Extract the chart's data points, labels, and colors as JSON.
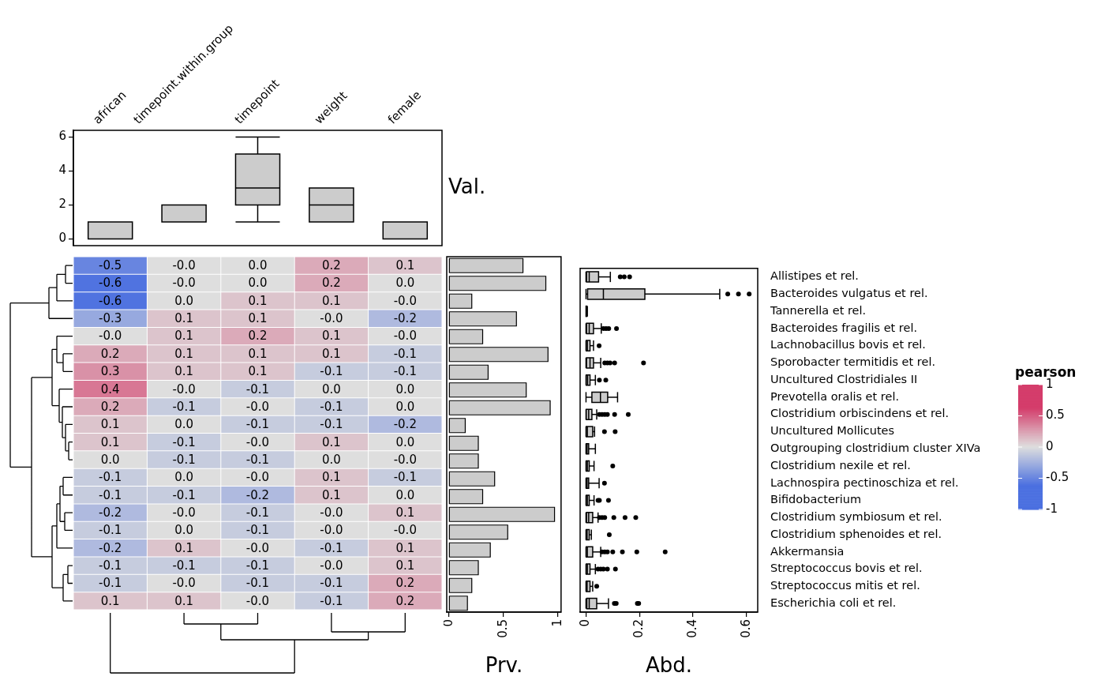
{
  "chart_data": [
    {
      "type": "box",
      "categories": [
        "african",
        "timepoint.within.group",
        "timepoint",
        "weight",
        "female"
      ],
      "color": "#cccccc",
      "ylabel": "Val.",
      "ylim": [
        -0.4,
        6.4
      ],
      "yticks": [
        0,
        2,
        4,
        6
      ],
      "boxes": [
        {
          "low": 0,
          "q1": 0,
          "median": 0,
          "q3": 1,
          "high": 1
        },
        {
          "low": 1,
          "q1": 1,
          "median": 1,
          "q3": 2,
          "high": 2
        },
        {
          "low": 1,
          "q1": 2,
          "median": 3,
          "q3": 5,
          "high": 6
        },
        {
          "low": 1,
          "q1": 1,
          "median": 2,
          "q3": 3,
          "high": 3
        },
        {
          "low": 0,
          "q1": 0,
          "median": 0,
          "q3": 1,
          "high": 1
        }
      ]
    },
    {
      "type": "heatmap",
      "categories": [
        null,
        null,
        null,
        null,
        null
      ],
      "y_categories": [
        null,
        null,
        null,
        null,
        null,
        null,
        null,
        null,
        null,
        null,
        null,
        null,
        null,
        null,
        null,
        null,
        null,
        null,
        null,
        null
      ],
      "cells": [
        [
          -0.5,
          0,
          0,
          0.2,
          0.1
        ],
        [
          -0.6,
          0,
          0,
          0.2,
          0
        ],
        [
          -0.6,
          0,
          0.1,
          0.1,
          0
        ],
        [
          -0.3,
          0.1,
          0.1,
          0,
          -0.2
        ],
        [
          0,
          0.1,
          0.2,
          0.1,
          0
        ],
        [
          0.2,
          0.1,
          0.1,
          0.1,
          -0.1
        ],
        [
          0.3,
          0.1,
          0.1,
          -0.1,
          -0.1
        ],
        [
          0.4,
          0,
          -0.1,
          0,
          0
        ],
        [
          0.2,
          -0.1,
          0,
          -0.1,
          0
        ],
        [
          0.1,
          0,
          -0.1,
          -0.1,
          -0.2
        ],
        [
          0.1,
          -0.1,
          0,
          0.1,
          0
        ],
        [
          0,
          -0.1,
          -0.1,
          0,
          0
        ],
        [
          -0.1,
          0,
          0,
          0.1,
          -0.1
        ],
        [
          -0.1,
          -0.1,
          -0.2,
          0.1,
          0
        ],
        [
          -0.2,
          0,
          -0.1,
          0,
          0.1
        ],
        [
          -0.1,
          0,
          -0.1,
          0,
          0
        ],
        [
          -0.2,
          0.1,
          0,
          -0.1,
          0.1
        ],
        [
          -0.1,
          -0.1,
          -0.1,
          0,
          0.1
        ],
        [
          -0.1,
          0,
          -0.1,
          -0.1,
          0.2
        ],
        [
          0.1,
          0.1,
          0,
          -0.1,
          0.2
        ]
      ],
      "cell_labels": [
        [
          "-0.5",
          "-0.0",
          "0.0",
          "0.2",
          "0.1"
        ],
        [
          "-0.6",
          "-0.0",
          "0.0",
          "0.2",
          "0.0"
        ],
        [
          "-0.6",
          "0.0",
          "0.1",
          "0.1",
          "-0.0"
        ],
        [
          "-0.3",
          "0.1",
          "0.1",
          "-0.0",
          "-0.2"
        ],
        [
          "-0.0",
          "0.1",
          "0.2",
          "0.1",
          "-0.0"
        ],
        [
          "0.2",
          "0.1",
          "0.1",
          "0.1",
          "-0.1"
        ],
        [
          "0.3",
          "0.1",
          "0.1",
          "-0.1",
          "-0.1"
        ],
        [
          "0.4",
          "-0.0",
          "-0.1",
          "0.0",
          "0.0"
        ],
        [
          "0.2",
          "-0.1",
          "-0.0",
          "-0.1",
          "0.0"
        ],
        [
          "0.1",
          "0.0",
          "-0.1",
          "-0.1",
          "-0.2"
        ],
        [
          "0.1",
          "-0.1",
          "-0.0",
          "0.1",
          "0.0"
        ],
        [
          "0.0",
          "-0.1",
          "-0.1",
          "0.0",
          "-0.0"
        ],
        [
          "-0.1",
          "0.0",
          "-0.0",
          "0.1",
          "-0.1"
        ],
        [
          "-0.1",
          "-0.1",
          "-0.2",
          "0.1",
          "0.0"
        ],
        [
          "-0.2",
          "-0.0",
          "-0.1",
          "-0.0",
          "0.1"
        ],
        [
          "-0.1",
          "0.0",
          "-0.1",
          "-0.0",
          "-0.0"
        ],
        [
          "-0.2",
          "0.1",
          "-0.0",
          "-0.1",
          "0.1"
        ],
        [
          "-0.1",
          "-0.1",
          "-0.1",
          "-0.0",
          "0.1"
        ],
        [
          "-0.1",
          "-0.0",
          "-0.1",
          "-0.1",
          "0.2"
        ],
        [
          "0.1",
          "0.1",
          "-0.0",
          "-0.1",
          "0.2"
        ]
      ],
      "clim": [
        -1,
        1
      ],
      "cticks": [
        -1,
        -0.5,
        0,
        0.5,
        1
      ],
      "clabel": "pearson"
    },
    {
      "type": "bar",
      "orientation": "horizontal",
      "categories": [
        null,
        null,
        null,
        null,
        null,
        null,
        null,
        null,
        null,
        null,
        null,
        null,
        null,
        null,
        null,
        null,
        null,
        null,
        null,
        null
      ],
      "values": [
        0.68,
        0.89,
        0.21,
        0.62,
        0.31,
        0.91,
        0.36,
        0.71,
        0.93,
        0.15,
        0.27,
        0.27,
        0.42,
        0.31,
        0.97,
        0.54,
        0.38,
        0.27,
        0.21,
        0.17
      ],
      "color": "#cccccc",
      "xlabel": "Prv.",
      "xlim": [
        -0.02,
        1.03
      ],
      "xticks": [
        0,
        0.5,
        1
      ],
      "tick_labels": "x"
    },
    {
      "type": "box",
      "orientation": "horizontal",
      "categories": [
        "Allistipes et rel.",
        "Bacteroides vulgatus et rel.",
        "Tannerella et rel.",
        "Bacteroides fragilis et rel.",
        "Lachnobacillus bovis et rel.",
        "Sporobacter termitidis et rel.",
        "Uncultured Clostridiales II",
        "Prevotella oralis et rel.",
        "Clostridium orbiscindens et rel.",
        "Uncultured Mollicutes",
        "Outgrouping clostridium cluster XIVa",
        "Clostridium nexile et rel.",
        "Lachnospira pectinoschiza et rel.",
        "Bifidobacterium",
        "Clostridium symbiosum et rel.",
        "Clostridium sphenoides et rel.",
        "Akkermansia",
        "Streptococcus bovis et rel.",
        "Streptococcus mitis et rel.",
        "Escherichia coli et rel."
      ],
      "color": "#cccccc",
      "xlabel": "Abd.",
      "xlim": [
        -0.022,
        0.642
      ],
      "xticks": [
        0,
        0.2,
        0.4,
        0.6
      ],
      "boxes": [
        {
          "low": 0,
          "q1": 0.002,
          "median": 0.012,
          "q3": 0.047,
          "high": 0.091,
          "outliers": [
            0.128,
            0.143,
            0.163
          ]
        },
        {
          "low": 0,
          "q1": 0.006,
          "median": 0.065,
          "q3": 0.22,
          "high": 0.5,
          "outliers": [
            0.53,
            0.57,
            0.61
          ]
        },
        {
          "low": 0,
          "q1": 0,
          "median": 0.001,
          "q3": 0.003,
          "high": 0.005
        },
        {
          "low": 0,
          "q1": 0.002,
          "median": 0.012,
          "q3": 0.028,
          "high": 0.057,
          "outliers": [
            0.065,
            0.075,
            0.085,
            0.114
          ]
        },
        {
          "low": 0,
          "q1": 0.001,
          "median": 0.005,
          "q3": 0.015,
          "high": 0.028,
          "outliers": [
            0.049
          ]
        },
        {
          "low": 0,
          "q1": 0.002,
          "median": 0.015,
          "q3": 0.028,
          "high": 0.055,
          "outliers": [
            0.07,
            0.08,
            0.09,
            0.107,
            0.215
          ]
        },
        {
          "low": 0,
          "q1": 0.001,
          "median": 0.006,
          "q3": 0.015,
          "high": 0.035,
          "outliers": [
            0.05,
            0.074
          ]
        },
        {
          "low": 0,
          "q1": 0.022,
          "median": 0.054,
          "q3": 0.081,
          "high": 0.118
        },
        {
          "low": 0,
          "q1": 0.001,
          "median": 0.01,
          "q3": 0.022,
          "high": 0.04,
          "outliers": [
            0.05,
            0.06,
            0.07,
            0.08,
            0.107,
            0.158
          ]
        },
        {
          "low": 0,
          "q1": 0.001,
          "median": 0.005,
          "q3": 0.025,
          "high": 0.032,
          "outliers": [
            0.069,
            0.109
          ]
        },
        {
          "low": 0,
          "q1": 0.001,
          "median": 0.004,
          "q3": 0.01,
          "high": 0.035
        },
        {
          "low": 0,
          "q1": 0.001,
          "median": 0.005,
          "q3": 0.012,
          "high": 0.03,
          "outliers": [
            0.1
          ]
        },
        {
          "low": 0,
          "q1": 0.001,
          "median": 0.004,
          "q3": 0.01,
          "high": 0.049,
          "outliers": [
            0.069
          ]
        },
        {
          "low": 0,
          "q1": 0.001,
          "median": 0.005,
          "q3": 0.012,
          "high": 0.03,
          "outliers": [
            0.045,
            0.05,
            0.084
          ]
        },
        {
          "low": 0,
          "q1": 0.002,
          "median": 0.01,
          "q3": 0.025,
          "high": 0.045,
          "outliers": [
            0.05,
            0.06,
            0.07,
            0.104,
            0.146,
            0.186
          ]
        },
        {
          "low": 0,
          "q1": 0.001,
          "median": 0.004,
          "q3": 0.012,
          "high": 0.02,
          "outliers": [
            0.087
          ]
        },
        {
          "low": 0,
          "q1": 0.001,
          "median": 0.005,
          "q3": 0.025,
          "high": 0.055,
          "outliers": [
            0.06,
            0.07,
            0.08,
            0.1,
            0.136,
            0.19,
            0.296
          ]
        },
        {
          "low": 0,
          "q1": 0.001,
          "median": 0.005,
          "q3": 0.015,
          "high": 0.035,
          "outliers": [
            0.045,
            0.055,
            0.065,
            0.08,
            0.11
          ]
        },
        {
          "low": 0,
          "q1": 0.001,
          "median": 0.004,
          "q3": 0.015,
          "high": 0.025,
          "outliers": [
            0.04
          ]
        },
        {
          "low": 0,
          "q1": 0.003,
          "median": 0.012,
          "q3": 0.04,
          "high": 0.084,
          "outliers": [
            0.106,
            0.113,
            0.192,
            0.197
          ]
        }
      ]
    }
  ]
}
